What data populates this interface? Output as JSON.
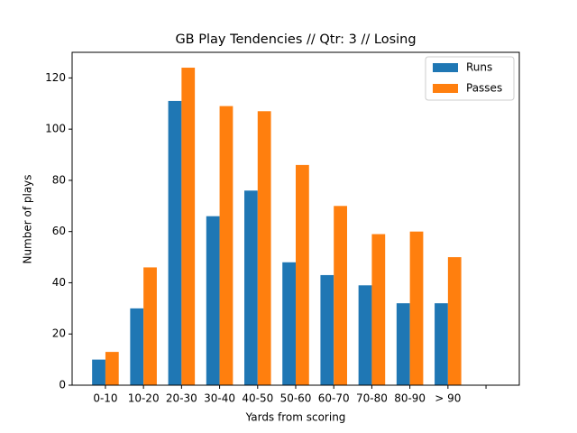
{
  "chart_data": {
    "type": "bar",
    "title": "GB Play Tendencies // Qtr: 3 // Losing",
    "x_label": "Yards from scoring",
    "y_label": "Number of plays",
    "categories": [
      "0-10",
      "10-20",
      "20-30",
      "30-40",
      "40-50",
      "50-60",
      "60-70",
      "70-80",
      "80-90",
      "> 90",
      null
    ],
    "series": [
      {
        "name": "Runs",
        "color": "#1f77b4",
        "values": [
          10,
          30,
          111,
          66,
          76,
          48,
          43,
          39,
          32,
          32,
          null
        ]
      },
      {
        "name": "Passes",
        "color": "#ff7f0e",
        "values": [
          13,
          46,
          124,
          109,
          107,
          86,
          70,
          59,
          60,
          50,
          null
        ]
      }
    ],
    "ylim": [
      0,
      130
    ],
    "yticks": [
      0,
      20,
      40,
      60,
      80,
      100,
      120
    ],
    "legend": "upper right"
  }
}
